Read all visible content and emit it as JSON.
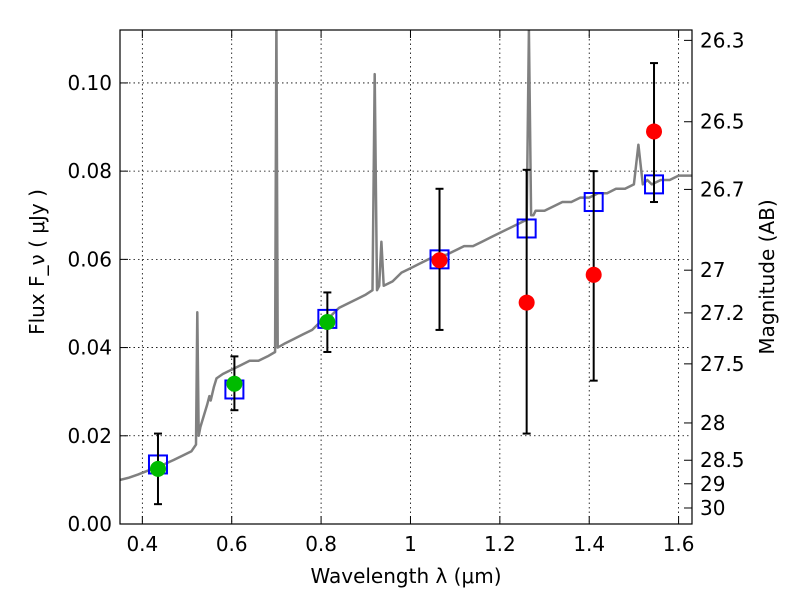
{
  "chart_data": {
    "type": "scatter",
    "xlabel": "Wavelength  λ (μm)",
    "ylabel": "Flux  F_ν  ( μJy )",
    "ylabel_right": "Magnitude (AB)",
    "xlim": [
      0.35,
      1.63
    ],
    "ylim": [
      0.0,
      0.112
    ],
    "grid": true,
    "x_ticks": [
      {
        "value": 0.4,
        "label": "0.4"
      },
      {
        "value": 0.6,
        "label": "0.6"
      },
      {
        "value": 0.8,
        "label": "0.8"
      },
      {
        "value": 1.0,
        "label": "1"
      },
      {
        "value": 1.2,
        "label": "1.2"
      },
      {
        "value": 1.4,
        "label": "1.4"
      },
      {
        "value": 1.6,
        "label": "1.6"
      }
    ],
    "y_ticks": [
      {
        "value": 0.0,
        "label": "0.00"
      },
      {
        "value": 0.02,
        "label": "0.02"
      },
      {
        "value": 0.04,
        "label": "0.04"
      },
      {
        "value": 0.06,
        "label": "0.06"
      },
      {
        "value": 0.08,
        "label": "0.08"
      },
      {
        "value": 0.1,
        "label": "0.10"
      }
    ],
    "right_ticks": [
      {
        "mag": 26.3,
        "label": "26.3"
      },
      {
        "mag": 26.5,
        "label": "26.5"
      },
      {
        "mag": 26.7,
        "label": "26.7"
      },
      {
        "mag": 27.0,
        "label": "27"
      },
      {
        "mag": 27.2,
        "label": "27.2"
      },
      {
        "mag": 27.5,
        "label": "27.5"
      },
      {
        "mag": 28.0,
        "label": "28"
      },
      {
        "mag": 28.5,
        "label": "28.5"
      },
      {
        "mag": 29.0,
        "label": "29"
      },
      {
        "mag": 30.0,
        "label": "30"
      }
    ],
    "series": [
      {
        "kind": "model_spectrum",
        "color": "#808080",
        "x": [
          0.35,
          0.37,
          0.39,
          0.41,
          0.43,
          0.45,
          0.47,
          0.49,
          0.51,
          0.52,
          0.523,
          0.526,
          0.53,
          0.545,
          0.55,
          0.553,
          0.56,
          0.566,
          0.58,
          0.6,
          0.62,
          0.64,
          0.66,
          0.68,
          0.697,
          0.7,
          0.703,
          0.72,
          0.74,
          0.76,
          0.78,
          0.8,
          0.82,
          0.84,
          0.86,
          0.88,
          0.9,
          0.915,
          0.92,
          0.925,
          0.93,
          0.935,
          0.94,
          0.96,
          0.98,
          1.0,
          1.02,
          1.04,
          1.06,
          1.08,
          1.1,
          1.12,
          1.14,
          1.16,
          1.18,
          1.2,
          1.22,
          1.24,
          1.26,
          1.265,
          1.27,
          1.275,
          1.28,
          1.3,
          1.32,
          1.34,
          1.36,
          1.38,
          1.4,
          1.42,
          1.44,
          1.46,
          1.48,
          1.5,
          1.51,
          1.52,
          1.53,
          1.54,
          1.56,
          1.58,
          1.6,
          1.63
        ],
        "y": [
          0.01,
          0.0105,
          0.0112,
          0.012,
          0.0128,
          0.0136,
          0.0145,
          0.0155,
          0.0165,
          0.018,
          0.048,
          0.02,
          0.022,
          0.027,
          0.029,
          0.028,
          0.031,
          0.033,
          0.034,
          0.035,
          0.036,
          0.037,
          0.037,
          0.038,
          0.039,
          0.115,
          0.04,
          0.041,
          0.042,
          0.043,
          0.044,
          0.046,
          0.047,
          0.049,
          0.05,
          0.051,
          0.052,
          0.053,
          0.102,
          0.053,
          0.054,
          0.064,
          0.054,
          0.055,
          0.057,
          0.058,
          0.059,
          0.06,
          0.061,
          0.061,
          0.062,
          0.063,
          0.063,
          0.064,
          0.065,
          0.066,
          0.067,
          0.068,
          0.069,
          0.112,
          0.07,
          0.07,
          0.071,
          0.071,
          0.072,
          0.073,
          0.073,
          0.074,
          0.074,
          0.075,
          0.075,
          0.076,
          0.076,
          0.077,
          0.086,
          0.077,
          0.078,
          0.077,
          0.078,
          0.078,
          0.079,
          0.079
        ]
      },
      {
        "kind": "model_photometry",
        "marker": "square",
        "color": "#0000ff",
        "x": [
          0.435,
          0.606,
          0.814,
          1.065,
          1.26,
          1.41,
          1.545
        ],
        "y": [
          0.0135,
          0.0305,
          0.0465,
          0.06,
          0.067,
          0.073,
          0.077
        ]
      },
      {
        "kind": "observed_detections",
        "marker": "circle",
        "color": "#00bb00",
        "x": [
          0.435,
          0.606,
          0.814
        ],
        "y": [
          0.0125,
          0.0318,
          0.0458
        ],
        "yerr": [
          [
            0.0045,
            0.0205
          ],
          [
            0.0258,
            0.038
          ],
          [
            0.039,
            0.0525
          ]
        ]
      },
      {
        "kind": "observed_measurements",
        "marker": "circle",
        "color": "#ff0000",
        "x": [
          1.065,
          1.26,
          1.41,
          1.545
        ],
        "y": [
          0.0598,
          0.0502,
          0.0565,
          0.089
        ],
        "yerr": [
          [
            0.044,
            0.076
          ],
          [
            0.0205,
            0.0803
          ],
          [
            0.0325,
            0.08
          ],
          [
            0.073,
            0.1045
          ]
        ]
      }
    ]
  }
}
